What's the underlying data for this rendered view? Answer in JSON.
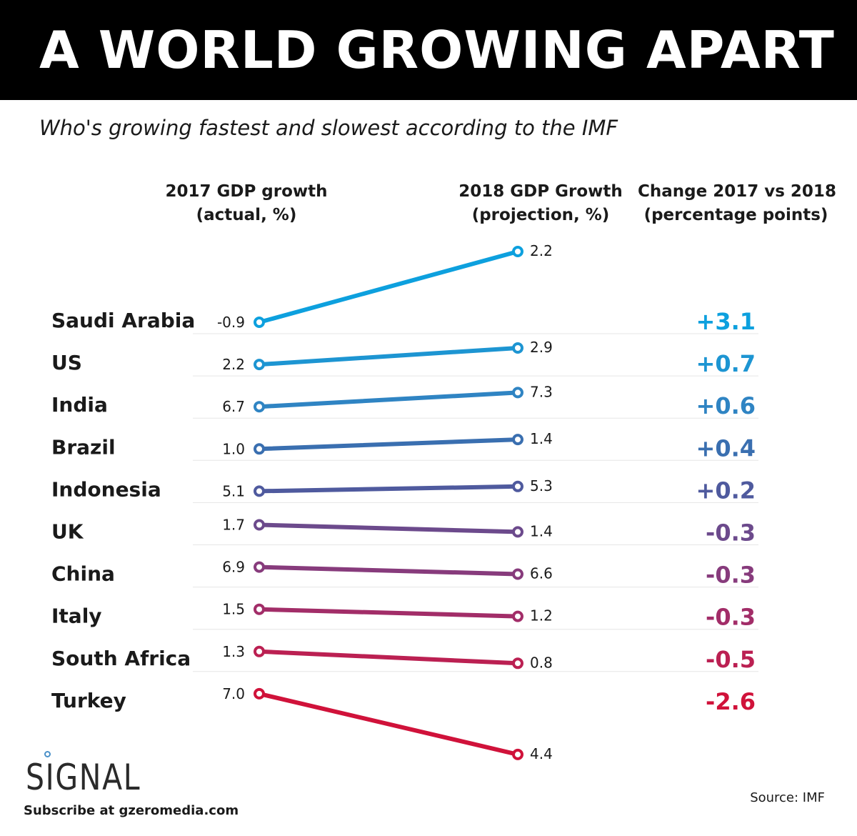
{
  "header": {
    "title": "A WORLD GROWING APART",
    "subtitle": "Who's growing fastest and slowest according to the IMF"
  },
  "columns": {
    "gdp_2017": [
      "2017 GDP growth",
      "(actual, %)"
    ],
    "gdp_2018": [
      "2018 GDP Growth",
      "(projection, %)"
    ],
    "change": [
      "Change 2017 vs 2018",
      "(percentage points)"
    ]
  },
  "chart_data": {
    "type": "slope",
    "title": "A WORLD GROWING APART",
    "subtitle": "Who's growing fastest and slowest according to the IMF",
    "series_labels": [
      "2017 GDP growth (actual, %)",
      "2018 GDP Growth (projection, %)",
      "Change 2017 vs 2018 (percentage points)"
    ],
    "rows": [
      {
        "country": "Saudi Arabia",
        "y2017": -0.9,
        "y2017_label": "-0.9",
        "y2018": 2.2,
        "y2018_label": "2.2",
        "change": "+3.1",
        "color": "#0da0de"
      },
      {
        "country": "US",
        "y2017": 2.2,
        "y2017_label": "2.2",
        "y2018": 2.9,
        "y2018_label": "2.9",
        "change": "+0.7",
        "color": "#1d95d2"
      },
      {
        "country": "India",
        "y2017": 6.7,
        "y2017_label": "6.7",
        "y2018": 7.3,
        "y2018_label": "7.3",
        "change": "+0.6",
        "color": "#2f84c3"
      },
      {
        "country": "Brazil",
        "y2017": 1.0,
        "y2017_label": "1.0",
        "y2018": 1.4,
        "y2018_label": "1.4",
        "change": "+0.4",
        "color": "#3a6fb0"
      },
      {
        "country": "Indonesia",
        "y2017": 5.1,
        "y2017_label": "5.1",
        "y2018": 5.3,
        "y2018_label": "5.3",
        "change": "+0.2",
        "color": "#4f5a9e"
      },
      {
        "country": "UK",
        "y2017": 1.7,
        "y2017_label": "1.7",
        "y2018": 1.4,
        "y2018_label": "1.4",
        "change": "-0.3",
        "color": "#6c4a8c"
      },
      {
        "country": "China",
        "y2017": 6.9,
        "y2017_label": "6.9",
        "y2018": 6.6,
        "y2018_label": "6.6",
        "change": "-0.3",
        "color": "#873b7c"
      },
      {
        "country": "Italy",
        "y2017": 1.5,
        "y2017_label": "1.5",
        "y2018": 1.2,
        "y2018_label": "1.2",
        "change": "-0.3",
        "color": "#a22d68"
      },
      {
        "country": "South Africa",
        "y2017": 1.3,
        "y2017_label": "1.3",
        "y2018": 0.8,
        "y2018_label": "0.8",
        "change": "-0.5",
        "color": "#bb2052"
      },
      {
        "country": "Turkey",
        "y2017": 7.0,
        "y2017_label": "7.0",
        "y2018": 4.4,
        "y2018_label": "4.4",
        "change": "-2.6",
        "color": "#d0123a"
      }
    ]
  },
  "footer": {
    "logo": "SIGNAL",
    "subscribe": "Subscribe at gzeromedia.com",
    "source": "Source: IMF"
  }
}
